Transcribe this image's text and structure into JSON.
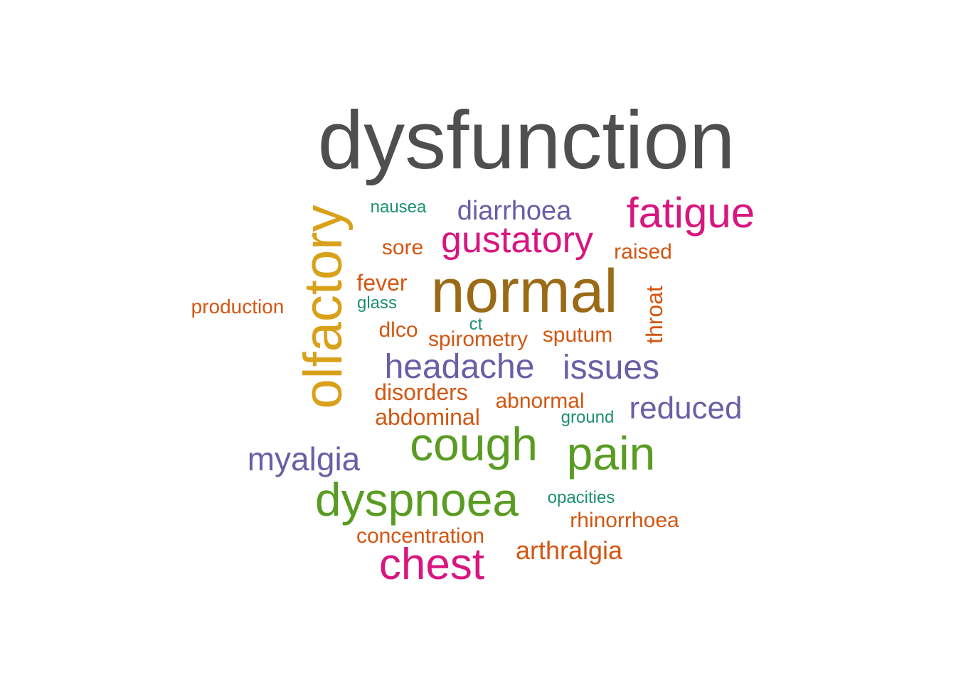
{
  "colors": {
    "gray": "#4f4f4f",
    "brown": "#9a6a17",
    "gold": "#d9a11a",
    "magenta": "#d8167f",
    "green": "#5a9c22",
    "purple": "#6a5ea6",
    "orange": "#d35611",
    "teal": "#1c9070"
  },
  "words": [
    {
      "id": "dysfunction",
      "text": "dysfunction",
      "color": "gray"
    },
    {
      "id": "normal",
      "text": "normal",
      "color": "brown"
    },
    {
      "id": "olfactory",
      "text": "olfactory",
      "color": "gold"
    },
    {
      "id": "fatigue",
      "text": "fatigue",
      "color": "magenta"
    },
    {
      "id": "gustatory",
      "text": "gustatory",
      "color": "magenta"
    },
    {
      "id": "chest",
      "text": "chest",
      "color": "magenta"
    },
    {
      "id": "cough",
      "text": "cough",
      "color": "green"
    },
    {
      "id": "pain",
      "text": "pain",
      "color": "green"
    },
    {
      "id": "dyspnoea",
      "text": "dyspnoea",
      "color": "green"
    },
    {
      "id": "diarrhoea",
      "text": "diarrhoea",
      "color": "purple"
    },
    {
      "id": "headache",
      "text": "headache",
      "color": "purple"
    },
    {
      "id": "issues",
      "text": "issues",
      "color": "purple"
    },
    {
      "id": "reduced",
      "text": "reduced",
      "color": "purple"
    },
    {
      "id": "myalgia",
      "text": "myalgia",
      "color": "purple"
    },
    {
      "id": "nausea",
      "text": "nausea",
      "color": "teal"
    },
    {
      "id": "glass",
      "text": "glass",
      "color": "teal"
    },
    {
      "id": "ct",
      "text": "ct",
      "color": "teal"
    },
    {
      "id": "ground",
      "text": "ground",
      "color": "teal"
    },
    {
      "id": "opacities",
      "text": "opacities",
      "color": "teal"
    },
    {
      "id": "sore",
      "text": "sore",
      "color": "orange"
    },
    {
      "id": "raised",
      "text": "raised",
      "color": "orange"
    },
    {
      "id": "fever",
      "text": "fever",
      "color": "orange"
    },
    {
      "id": "production",
      "text": "production",
      "color": "orange"
    },
    {
      "id": "throat",
      "text": "throat",
      "color": "orange"
    },
    {
      "id": "dlco",
      "text": "dlco",
      "color": "orange"
    },
    {
      "id": "spirometry",
      "text": "spirometry",
      "color": "orange"
    },
    {
      "id": "sputum",
      "text": "sputum",
      "color": "orange"
    },
    {
      "id": "disorders",
      "text": "disorders",
      "color": "orange"
    },
    {
      "id": "abnormal",
      "text": "abnormal",
      "color": "orange"
    },
    {
      "id": "abdominal",
      "text": "abdominal",
      "color": "orange"
    },
    {
      "id": "rhinorrhoea",
      "text": "rhinorrhoea",
      "color": "orange"
    },
    {
      "id": "concentration",
      "text": "concentration",
      "color": "orange"
    },
    {
      "id": "arthralgia",
      "text": "arthralgia",
      "color": "orange"
    }
  ]
}
